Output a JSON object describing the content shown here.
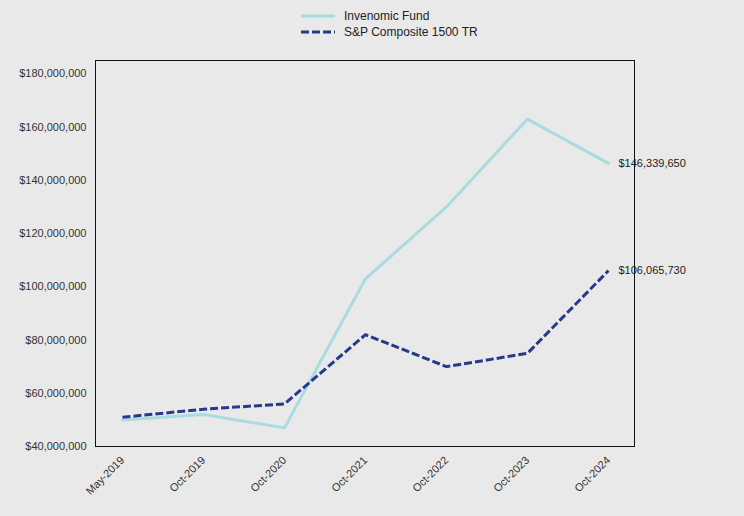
{
  "chart_data": {
    "type": "line",
    "categories": [
      "May-2019",
      "Oct-2019",
      "Oct-2020",
      "Oct-2021",
      "Oct-2022",
      "Oct-2023",
      "Oct-2024"
    ],
    "series": [
      {
        "name": "Invenomic Fund",
        "color": "#a8dce0",
        "line_style": "solid",
        "values": [
          50000000,
          52000000,
          47000000,
          103000000,
          130000000,
          163000000,
          146339650
        ]
      },
      {
        "name": "S&P Composite 1500 TR",
        "color": "#253a8e",
        "line_style": "dashed",
        "values": [
          51000000,
          54000000,
          56000000,
          82000000,
          70000000,
          75000000,
          106065730
        ]
      }
    ],
    "annotations": [
      {
        "text": "$146,339,650",
        "x": "Oct-2024",
        "y": 146339650
      },
      {
        "text": "$106,065,730",
        "x": "Oct-2024",
        "y": 106065730
      }
    ],
    "ylim": [
      40000000,
      185000000
    ],
    "yticks": [
      {
        "value": 40000000,
        "label": "$40,000,000"
      },
      {
        "value": 60000000,
        "label": "$60,000,000"
      },
      {
        "value": 80000000,
        "label": "$80,000,000"
      },
      {
        "value": 100000000,
        "label": "$100,000,000"
      },
      {
        "value": 120000000,
        "label": "$120,000,000"
      },
      {
        "value": 140000000,
        "label": "$140,000,000"
      },
      {
        "value": 160000000,
        "label": "$160,000,000"
      },
      {
        "value": 180000000,
        "label": "$180,000,000"
      }
    ],
    "grid": false,
    "legend": "top"
  }
}
